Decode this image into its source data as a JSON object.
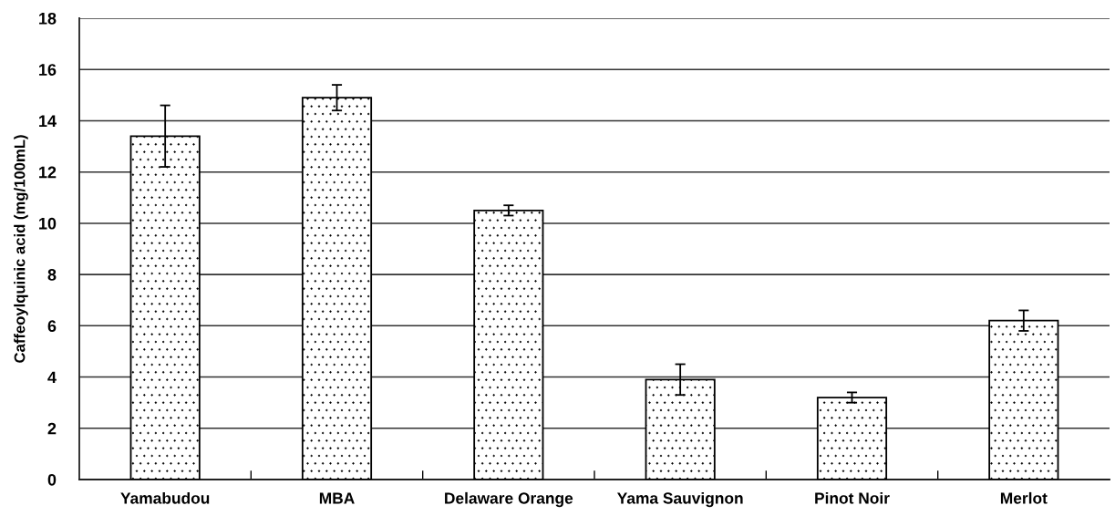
{
  "chart_data": {
    "type": "bar",
    "categories": [
      "Yamabudou",
      "MBA",
      "Delaware Orange",
      "Yama Sauvignon",
      "Pinot Noir",
      "Merlot"
    ],
    "values": [
      13.4,
      14.9,
      10.5,
      3.9,
      3.2,
      6.2
    ],
    "errors": [
      1.2,
      0.5,
      0.2,
      0.6,
      0.2,
      0.4
    ],
    "color": "#000000",
    "ylabel": "Caffeoylquinic acid (mg/100mL)",
    "ylim": [
      0,
      18
    ],
    "yticks": [
      0,
      2,
      4,
      6,
      8,
      10,
      12,
      14,
      16,
      18
    ],
    "grid": "y"
  }
}
